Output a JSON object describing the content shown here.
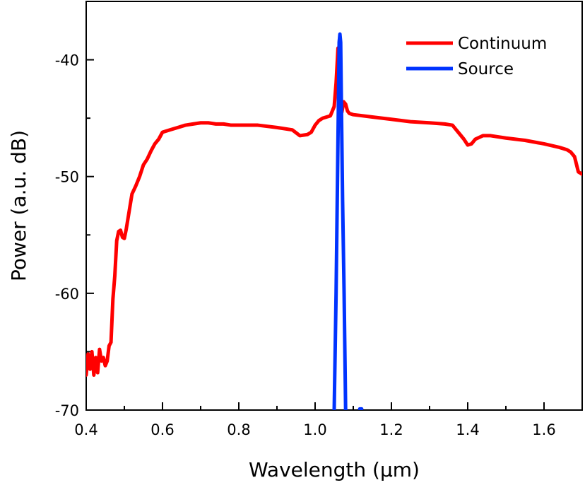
{
  "chart_data": {
    "type": "line",
    "title": "",
    "xlabel": "Wavelength (μm)",
    "ylabel": "Power (a.u. dB)",
    "xlim": [
      0.4,
      1.7
    ],
    "ylim": [
      -70,
      -35
    ],
    "x_ticks": [
      0.4,
      0.6,
      0.8,
      1.0,
      1.2,
      1.4,
      1.6
    ],
    "x_tick_labels": [
      "0.4",
      "0.6",
      "0.8",
      "1.0",
      "1.2",
      "1.4",
      "1.6"
    ],
    "y_ticks": [
      -70,
      -60,
      -50,
      -40
    ],
    "y_tick_labels": [
      "-70",
      "-60",
      "-50",
      "-40"
    ],
    "grid": false,
    "legend_position": "top-right",
    "series": [
      {
        "name": "Continuum",
        "color": "#ff0000",
        "x": [
          0.4,
          0.405,
          0.41,
          0.415,
          0.42,
          0.425,
          0.43,
          0.435,
          0.44,
          0.445,
          0.45,
          0.455,
          0.46,
          0.465,
          0.47,
          0.475,
          0.48,
          0.485,
          0.49,
          0.495,
          0.5,
          0.505,
          0.51,
          0.515,
          0.52,
          0.53,
          0.54,
          0.55,
          0.56,
          0.57,
          0.58,
          0.59,
          0.6,
          0.62,
          0.64,
          0.66,
          0.68,
          0.7,
          0.72,
          0.74,
          0.76,
          0.78,
          0.8,
          0.85,
          0.9,
          0.94,
          0.96,
          0.98,
          0.99,
          1.0,
          1.01,
          1.02,
          1.04,
          1.05,
          1.055,
          1.06,
          1.063,
          1.066,
          1.07,
          1.075,
          1.08,
          1.085,
          1.09,
          1.1,
          1.15,
          1.2,
          1.25,
          1.3,
          1.34,
          1.36,
          1.37,
          1.38,
          1.39,
          1.4,
          1.41,
          1.42,
          1.44,
          1.46,
          1.5,
          1.55,
          1.6,
          1.64,
          1.66,
          1.67,
          1.68,
          1.69,
          1.7
        ],
        "y": [
          -67.0,
          -65.2,
          -66.5,
          -65.0,
          -67.0,
          -65.5,
          -66.8,
          -64.8,
          -65.8,
          -65.5,
          -66.2,
          -65.8,
          -64.5,
          -64.2,
          -60.5,
          -58.5,
          -55.5,
          -54.7,
          -54.6,
          -55.2,
          -55.3,
          -54.5,
          -53.5,
          -52.5,
          -51.5,
          -50.8,
          -50.0,
          -49.0,
          -48.5,
          -47.8,
          -47.2,
          -46.8,
          -46.2,
          -46.0,
          -45.8,
          -45.6,
          -45.5,
          -45.4,
          -45.4,
          -45.5,
          -45.5,
          -45.6,
          -45.6,
          -45.6,
          -45.8,
          -46.0,
          -46.5,
          -46.4,
          -46.2,
          -45.6,
          -45.2,
          -45.0,
          -44.8,
          -44.0,
          -42.0,
          -39.0,
          -41.0,
          -44.5,
          -44.5,
          -43.6,
          -43.8,
          -44.4,
          -44.6,
          -44.7,
          -44.9,
          -45.1,
          -45.3,
          -45.4,
          -45.5,
          -45.6,
          -46.0,
          -46.4,
          -46.8,
          -47.3,
          -47.2,
          -46.8,
          -46.5,
          -46.5,
          -46.7,
          -46.9,
          -47.2,
          -47.5,
          -47.7,
          -47.9,
          -48.3,
          -49.6,
          -49.8
        ]
      },
      {
        "name": "Source",
        "color": "#0033ff",
        "x": [
          1.05,
          1.055,
          1.058,
          1.061,
          1.063,
          1.065,
          1.067,
          1.069,
          1.072,
          1.076,
          1.08
        ],
        "y": [
          -70.0,
          -60.0,
          -52.0,
          -44.0,
          -38.5,
          -37.8,
          -38.5,
          -44.0,
          -52.0,
          -60.0,
          -70.0
        ]
      },
      {
        "name": "",
        "color": "#0033ff",
        "x": [
          1.117,
          1.122
        ],
        "y": [
          -69.9,
          -69.9
        ]
      }
    ]
  }
}
